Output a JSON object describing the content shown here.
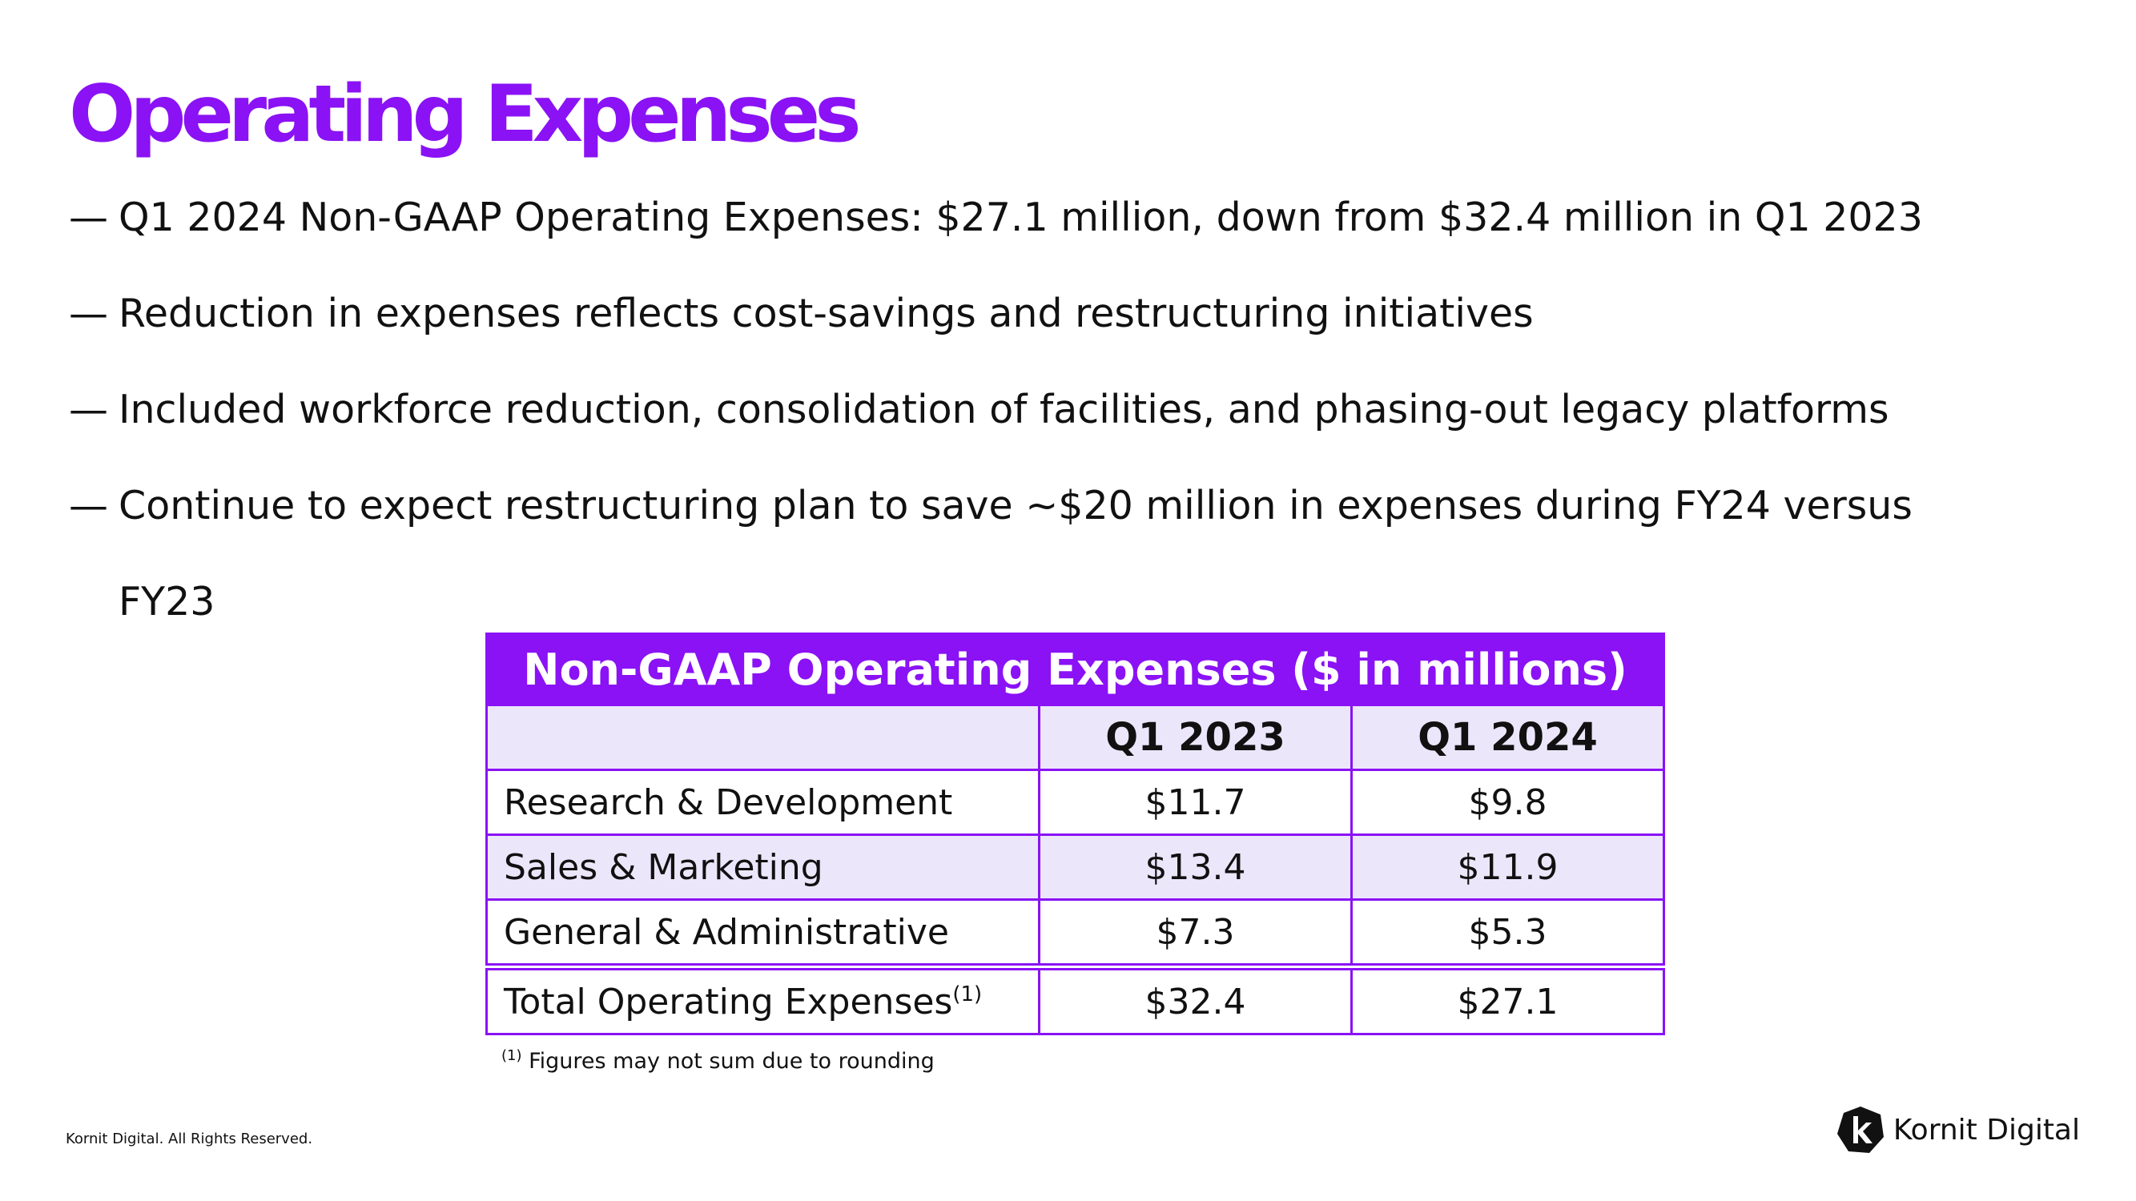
{
  "title": "Operating Expenses",
  "bullets": [
    "Q1 2024 Non-GAAP Operating Expenses: $27.1 million, down from $32.4 million in Q1 2023",
    "Reduction in expenses reflects cost-savings and restructuring initiatives",
    "Included workforce reduction, consolidation of facilities, and phasing-out legacy platforms",
    "Continue to expect restructuring plan to save ~$20 million in expenses during FY24 versus"
  ],
  "bullet_continuation": "FY23",
  "dash": "—",
  "table": {
    "title": "Non-GAAP Operating Expenses ($ in millions)",
    "columns": [
      "",
      "Q1 2023",
      "Q1 2024"
    ],
    "rows": [
      {
        "label": "Research & Development",
        "q1_2023": "$11.7",
        "q1_2024": "$9.8"
      },
      {
        "label": "Sales & Marketing",
        "q1_2023": "$13.4",
        "q1_2024": "$11.9"
      },
      {
        "label": "General & Administrative",
        "q1_2023": "$7.3",
        "q1_2024": "$5.3"
      }
    ],
    "total": {
      "label": "Total Operating Expenses",
      "marker": "(1)",
      "q1_2023": "$32.4",
      "q1_2024": "$27.1"
    }
  },
  "footnote": {
    "marker": "(1)",
    "text": "Figures may not sum due to rounding"
  },
  "footer": {
    "copyright": "Kornit Digital. All Rights Reserved.",
    "logo_text": "Kornit Digital",
    "logo_icon": "kornit-k-icon"
  },
  "colors": {
    "accent": "#8a12f5",
    "row_shade": "#ece6fb"
  }
}
